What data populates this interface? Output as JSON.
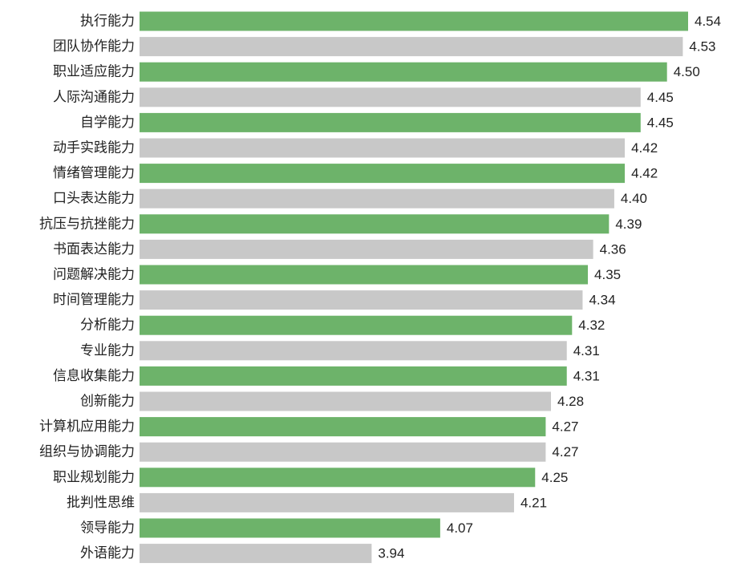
{
  "chart_data": {
    "type": "bar",
    "orientation": "horizontal",
    "categories": [
      "执行能力",
      "团队协作能力",
      "职业适应能力",
      "人际沟通能力",
      "自学能力",
      "动手实践能力",
      "情绪管理能力",
      "口头表达能力",
      "抗压与抗挫能力",
      "书面表达能力",
      "问题解决能力",
      "时间管理能力",
      "分析能力",
      "专业能力",
      "信息收集能力",
      "创新能力",
      "计算机应用能力",
      "组织与协调能力",
      "职业规划能力",
      "批判性思维",
      "领导能力",
      "外语能力"
    ],
    "values": [
      4.54,
      4.53,
      4.5,
      4.45,
      4.45,
      4.42,
      4.42,
      4.4,
      4.39,
      4.36,
      4.35,
      4.34,
      4.32,
      4.31,
      4.31,
      4.28,
      4.27,
      4.27,
      4.25,
      4.21,
      4.07,
      3.94
    ],
    "value_labels": [
      "4.54",
      "4.53",
      "4.50",
      "4.45",
      "4.45",
      "4.42",
      "4.42",
      "4.40",
      "4.39",
      "4.36",
      "4.35",
      "4.34",
      "4.32",
      "4.31",
      "4.31",
      "4.28",
      "4.27",
      "4.27",
      "4.25",
      "4.21",
      "4.07",
      "3.94"
    ],
    "xlim": [
      3.5,
      4.54
    ],
    "bar_colors": [
      "#6db36a",
      "#c8c8c8"
    ],
    "color_pattern": "alternating",
    "grid": false,
    "legend": "none"
  }
}
